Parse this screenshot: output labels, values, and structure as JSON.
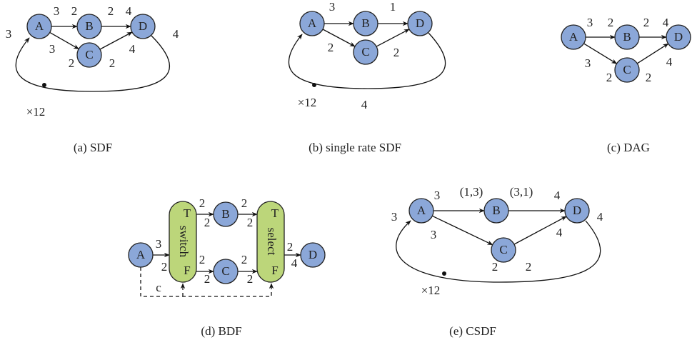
{
  "panels": [
    {
      "caption": "(a) SDF",
      "nodes": [
        "A",
        "B",
        "C",
        "D"
      ],
      "labels": [
        3,
        2,
        2,
        4,
        3,
        2,
        2,
        4,
        3,
        4
      ],
      "delay": "×12"
    },
    {
      "caption": "(b) single rate SDF",
      "nodes": [
        "A",
        "B",
        "C",
        "D"
      ],
      "labels": [
        3,
        1,
        2,
        2,
        4
      ],
      "delay": "×12"
    },
    {
      "caption": "(c) DAG",
      "nodes": [
        "A",
        "B",
        "C",
        "D"
      ],
      "labels": [
        3,
        2,
        2,
        4,
        3,
        2,
        2,
        4
      ]
    },
    {
      "caption": "(d) BDF",
      "nodes": [
        "A",
        "B",
        "C",
        "D"
      ],
      "labels": [
        3,
        2,
        2,
        2,
        2,
        2,
        2,
        2,
        2,
        2,
        2,
        4
      ],
      "blocks": [
        {
          "name": "switch",
          "ports": [
            "T",
            "F"
          ]
        },
        {
          "name": "select",
          "ports": [
            "T",
            "F"
          ]
        }
      ],
      "control": "c"
    },
    {
      "caption": "(e) CSDF",
      "nodes": [
        "A",
        "B",
        "C",
        "D"
      ],
      "labels": [
        3,
        "(1,3)",
        "(3,1)",
        4,
        3,
        2,
        2,
        4,
        3,
        4
      ],
      "delay": "×12"
    }
  ]
}
